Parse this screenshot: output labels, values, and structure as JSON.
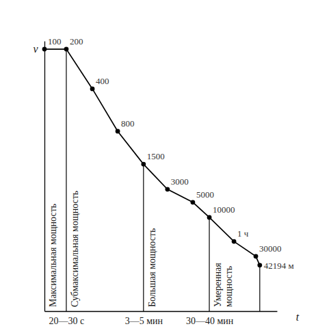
{
  "chart_data": {
    "type": "line",
    "x_label": "t",
    "y_label": "v",
    "xlim": [
      0,
      100
    ],
    "ylim": [
      0,
      100
    ],
    "xticks": [
      {
        "value": 9.4,
        "label": "20—30 с"
      },
      {
        "value": 42.6,
        "label": "3—5 мин"
      },
      {
        "value": 70.9,
        "label": "30—40 мин"
      }
    ],
    "yticks": [],
    "tick_labels": "x",
    "grid": false,
    "color": "#000000",
    "marker": "circle",
    "line_style": "solid",
    "x": [
      0,
      9.4,
      20.6,
      31.5,
      42.6,
      52.9,
      63.8,
      70.9,
      81.5,
      90.9,
      92.6
    ],
    "values": [
      97,
      97,
      82.3,
      66.6,
      54.4,
      45.1,
      40.3,
      34.7,
      25.8,
      20.3,
      17
    ],
    "point_labels": [
      "100",
      "200",
      "400",
      "800",
      "1500",
      "3000",
      "5000",
      "10000",
      "1 ч",
      "30000",
      "42194 м"
    ],
    "zones": [
      {
        "label": "Максимальная мощность",
        "x0": 0,
        "x1": 9.4
      },
      {
        "label": "Субмаксимальная мощность",
        "x0": 9.4,
        "x1": 42.6
      },
      {
        "label": "Большая мощность",
        "x0": 42.6,
        "x1": 70.9
      },
      {
        "label": "Умеренная мощность",
        "x0": 70.9,
        "x1": 92.6
      }
    ]
  }
}
